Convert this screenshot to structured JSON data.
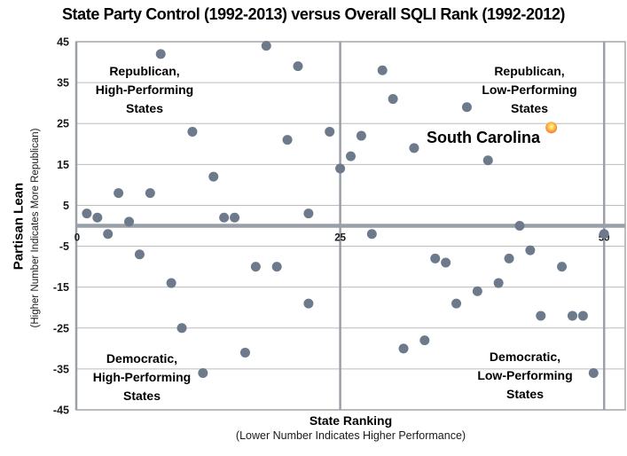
{
  "title": "State Party Control (1992-2013) versus Overall SQLI Rank (1992-2012)",
  "quadrants": {
    "top_left": "Republican,\nHigh-Performing\nStates",
    "top_right": "Republican,\nLow-Performing\nStates",
    "bottom_left": "Democratic,\nHigh-Performing\nStates",
    "bottom_right": "Democratic,\nLow-Performing\nStates"
  },
  "highlight_label": "South Carolina",
  "axes": {
    "x_title": "State Ranking",
    "x_note": "(Lower Number Indicates Higher Performance)",
    "y_title": "Partisan Lean",
    "y_note": "(Higher Number Indicates More Republican)"
  },
  "colors": {
    "point": "#6d7a8b",
    "highlight_outer": "#f79646",
    "highlight_inner": "#fff3b0",
    "gridline": "#bcbcbc",
    "axis_line": "#99a0a8",
    "border": "#a6a6a6"
  },
  "chart_data": {
    "type": "scatter",
    "title": "State Party Control (1992-2013) versus Overall SQLI Rank (1992-2012)",
    "xlabel": "State Ranking (Lower Number Indicates Higher Performance)",
    "ylabel": "Partisan Lean (Higher Number Indicates More Republican)",
    "xlim": [
      0,
      52
    ],
    "ylim": [
      -45,
      45
    ],
    "x_ticks": [
      0,
      25,
      50
    ],
    "y_ticks": [
      45,
      35,
      25,
      15,
      5,
      -5,
      -15,
      -25,
      -35,
      -45
    ],
    "grid": true,
    "legend": "none",
    "series": [
      {
        "name": "States",
        "color": "#6d7a8b",
        "points": [
          [
            1,
            3
          ],
          [
            2,
            2
          ],
          [
            3,
            -2
          ],
          [
            4,
            8
          ],
          [
            5,
            1
          ],
          [
            6,
            -7
          ],
          [
            7,
            8
          ],
          [
            8,
            42
          ],
          [
            9,
            -14
          ],
          [
            10,
            -25
          ],
          [
            11,
            23
          ],
          [
            12,
            -36
          ],
          [
            13,
            12
          ],
          [
            14,
            2
          ],
          [
            15,
            2
          ],
          [
            16,
            -31
          ],
          [
            17,
            -10
          ],
          [
            18,
            44
          ],
          [
            19,
            -10
          ],
          [
            20,
            21
          ],
          [
            21,
            39
          ],
          [
            22,
            3
          ],
          [
            22,
            -19
          ],
          [
            24,
            23
          ],
          [
            25,
            14
          ],
          [
            26,
            17
          ],
          [
            27,
            22
          ],
          [
            28,
            -2
          ],
          [
            29,
            38
          ],
          [
            30,
            31
          ],
          [
            31,
            -30
          ],
          [
            32,
            19
          ],
          [
            33,
            -28
          ],
          [
            34,
            -8
          ],
          [
            35,
            -9
          ],
          [
            36,
            -19
          ],
          [
            37,
            29
          ],
          [
            38,
            -16
          ],
          [
            39,
            16
          ],
          [
            40,
            -14
          ],
          [
            41,
            -8
          ],
          [
            42,
            0
          ],
          [
            43,
            -6
          ],
          [
            44,
            -22
          ],
          [
            46,
            -10
          ],
          [
            47,
            -22
          ],
          [
            48,
            -22
          ],
          [
            49,
            -36
          ],
          [
            50,
            -2
          ]
        ]
      },
      {
        "name": "South Carolina",
        "color": "#f79646",
        "highlight": true,
        "points": [
          [
            45,
            24
          ]
        ]
      }
    ],
    "annotations": [
      {
        "text": "South Carolina",
        "x": 45,
        "y": 24
      },
      {
        "text": "Republican,\nHigh-Performing\nStates",
        "quadrant": "top-left"
      },
      {
        "text": "Republican,\nLow-Performing\nStates",
        "quadrant": "top-right"
      },
      {
        "text": "Democratic,\nHigh-Performing\nStates",
        "quadrant": "bottom-left"
      },
      {
        "text": "Democratic,\nLow-Performing\nStates",
        "quadrant": "bottom-right"
      }
    ]
  }
}
